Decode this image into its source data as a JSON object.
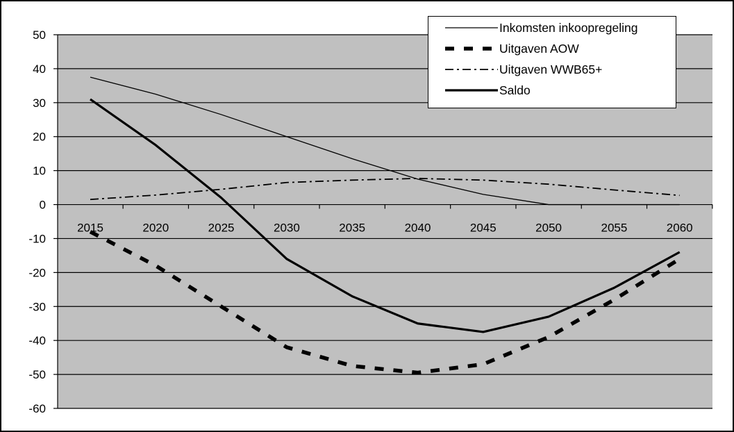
{
  "chart_data": {
    "type": "line",
    "title": "",
    "xlabel": "",
    "ylabel": "",
    "x": [
      2015,
      2020,
      2025,
      2030,
      2035,
      2040,
      2045,
      2050,
      2055,
      2060
    ],
    "x_tick_labels": [
      "2015",
      "2020",
      "2025",
      "2030",
      "2035",
      "2040",
      "2045",
      "2050",
      "2055",
      "2060"
    ],
    "ylim": [
      -60,
      50
    ],
    "y_ticks": [
      50,
      40,
      30,
      20,
      10,
      0,
      -10,
      -20,
      -30,
      -40,
      -50,
      -60
    ],
    "y_tick_labels": [
      "50",
      "40",
      "30",
      "20",
      "10",
      "0",
      "-10",
      "-20",
      "-30",
      "-40",
      "-50",
      "-60"
    ],
    "grid": "horizontal",
    "plot_background": "#c0c0c0",
    "legend_position": "top-right",
    "series": [
      {
        "name": "Inkomsten inkoopregeling",
        "values": [
          37.5,
          32.5,
          26.5,
          20,
          13.5,
          7.5,
          3,
          0,
          0,
          0
        ],
        "style": "thin-solid",
        "color": "#000000"
      },
      {
        "name": "Uitgaven AOW",
        "values": [
          -8,
          -18,
          -30,
          -42,
          -47.5,
          -49.5,
          -47,
          -39,
          -28,
          -16
        ],
        "style": "thick-dashed",
        "color": "#000000"
      },
      {
        "name": "Uitgaven WWB65+",
        "values": [
          1.5,
          2.8,
          4.5,
          6.5,
          7.2,
          7.7,
          7.2,
          6,
          4.3,
          2.7
        ],
        "style": "dash-dot",
        "color": "#000000"
      },
      {
        "name": "Saldo",
        "values": [
          31,
          17.5,
          2,
          -16,
          -27,
          -35,
          -37.5,
          -33,
          -24.5,
          -14
        ],
        "style": "thick-solid",
        "color": "#000000"
      }
    ]
  }
}
